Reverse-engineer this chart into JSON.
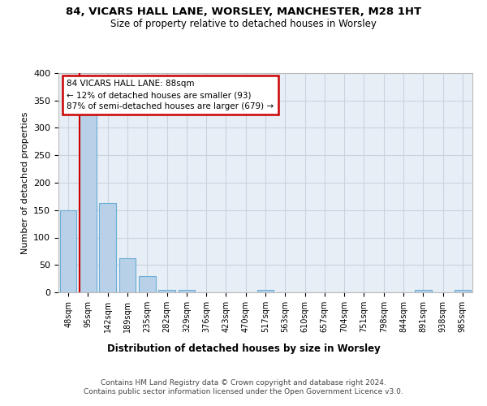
{
  "title_line1": "84, VICARS HALL LANE, WORSLEY, MANCHESTER, M28 1HT",
  "title_line2": "Size of property relative to detached houses in Worsley",
  "xlabel": "Distribution of detached houses by size in Worsley",
  "ylabel": "Number of detached properties",
  "footnote": "Contains HM Land Registry data © Crown copyright and database right 2024.\nContains public sector information licensed under the Open Government Licence v3.0.",
  "bins": [
    "48sqm",
    "95sqm",
    "142sqm",
    "189sqm",
    "235sqm",
    "282sqm",
    "329sqm",
    "376sqm",
    "423sqm",
    "470sqm",
    "517sqm",
    "563sqm",
    "610sqm",
    "657sqm",
    "704sqm",
    "751sqm",
    "798sqm",
    "844sqm",
    "891sqm",
    "938sqm",
    "985sqm"
  ],
  "values": [
    150,
    325,
    163,
    62,
    30,
    5,
    5,
    0,
    0,
    0,
    5,
    0,
    0,
    0,
    0,
    0,
    0,
    0,
    5,
    0,
    5
  ],
  "bar_color": "#b8d0e8",
  "bar_edge_color": "#6baed6",
  "grid_color": "#c8d4e0",
  "background_color": "#e8eef6",
  "annotation_text_line1": "84 VICARS HALL LANE: 88sqm",
  "annotation_text_line2": "← 12% of detached houses are smaller (93)",
  "annotation_text_line3": "87% of semi-detached houses are larger (679) →",
  "annotation_box_color": "#ffffff",
  "annotation_border_color": "#cc0000",
  "red_line_color": "#cc0000",
  "ylim": [
    0,
    400
  ],
  "yticks": [
    0,
    50,
    100,
    150,
    200,
    250,
    300,
    350,
    400
  ]
}
